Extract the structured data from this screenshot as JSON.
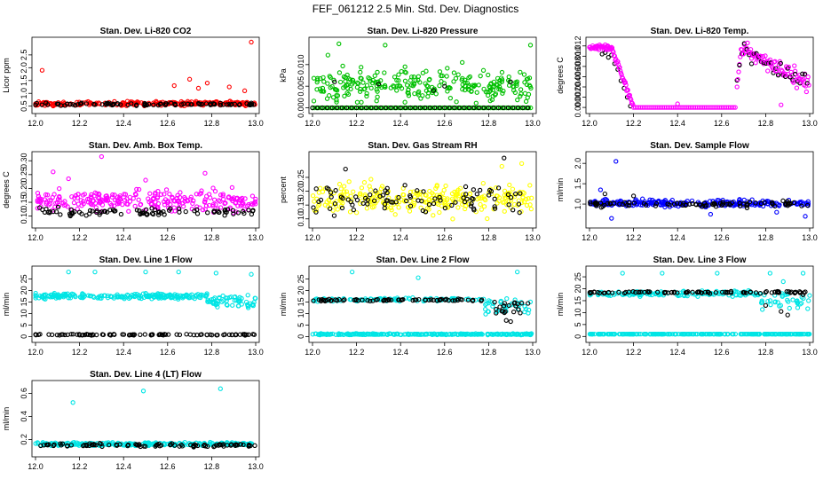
{
  "figure_title": "FEF_061212  2.5 Min. Std. Dev. Diagnostics",
  "chart_data": [
    {
      "type": "scatter",
      "title": "Stan. Dev. Li-820 CO2",
      "ylabel": "Licor ppm",
      "xlim": [
        12.0,
        13.0
      ],
      "xticks": [
        "12.0",
        "12.2",
        "12.4",
        "12.6",
        "12.8",
        "13.0"
      ],
      "ylim": [
        0.35,
        3.05
      ],
      "yticks": [
        "0.5",
        "1.0",
        "1.5",
        "2.0",
        "2.5"
      ],
      "series": [
        {
          "name": "all",
          "color": "#ff0000",
          "base": 0.6,
          "jitter": 0.08,
          "outliers": [
            [
              12.03,
              1.9
            ],
            [
              12.7,
              1.55
            ],
            [
              12.74,
              1.2
            ],
            [
              12.63,
              1.3
            ],
            [
              12.78,
              1.4
            ],
            [
              12.88,
              1.25
            ],
            [
              12.98,
              3.0
            ],
            [
              12.95,
              1.1
            ]
          ]
        },
        {
          "name": "selected",
          "color": "#000000",
          "base": 0.57,
          "jitter": 0.05,
          "outliers": []
        }
      ]
    },
    {
      "type": "scatter",
      "title": "Stan. Dev. Li-820 Pressure",
      "ylabel": "kPa",
      "xlim": [
        12.0,
        13.0
      ],
      "xticks": [
        "12.0",
        "12.2",
        "12.4",
        "12.6",
        "12.8",
        "13.0"
      ],
      "ylim": [
        -0.0005,
        0.0155
      ],
      "yticks": [
        "0.000",
        "0.005",
        "0.010"
      ],
      "series": [
        {
          "name": "all",
          "color": "#00c000",
          "base": 0.005,
          "jitter": 0.004,
          "outliers": [
            [
              12.07,
              0.0122
            ],
            [
              12.12,
              0.0148
            ],
            [
              12.33,
              0.0145
            ],
            [
              12.68,
              0.0105
            ],
            [
              12.99,
              0.0145
            ],
            [
              12.42,
              0.0095
            ]
          ]
        },
        {
          "name": "zero",
          "color": "#00c000",
          "base": 0.0,
          "jitter": 0.0,
          "outliers": []
        },
        {
          "name": "selected",
          "color": "#000000",
          "base": 0.0,
          "jitter": 0.0,
          "outliers": [
            [
              12.1,
              0.006
            ],
            [
              12.3,
              0.0055
            ],
            [
              12.6,
              0.005
            ],
            [
              12.9,
              0.006
            ],
            [
              12.55,
              0.004
            ]
          ]
        }
      ]
    },
    {
      "type": "scatter",
      "title": "Stan. Dev. Li-820 Temp.",
      "ylabel": "degrees C",
      "xlim": [
        12.0,
        13.0
      ],
      "xticks": [
        "12.0",
        "12.2",
        "12.4",
        "12.6",
        "12.8",
        "13.0"
      ],
      "ylim": [
        -0.0005,
        0.013
      ],
      "yticks": [
        "0.000",
        "0.002",
        "0.004",
        "0.006",
        "0.008",
        "0.010",
        "0.012"
      ],
      "series": [
        {
          "name": "all",
          "color": "#ff00ff",
          "base": 0.0,
          "jitter": 0.0,
          "outliers": []
        },
        {
          "name": "selected",
          "color": "#000000",
          "base": 0.0,
          "jitter": 0.0,
          "outliers": []
        }
      ]
    },
    {
      "type": "scatter",
      "title": "Stan. Dev. Amb. Box Temp.",
      "ylabel": "degrees C",
      "xlim": [
        12.0,
        13.0
      ],
      "xticks": [
        "12.0",
        "12.2",
        "12.4",
        "12.6",
        "12.8",
        "13.0"
      ],
      "ylim": [
        0.07,
        0.32
      ],
      "yticks": [
        "0.10",
        "0.15",
        "0.20",
        "0.25",
        "0.30"
      ],
      "series": [
        {
          "name": "all",
          "color": "#ff00ff",
          "base": 0.155,
          "jitter": 0.04,
          "outliers": [
            [
              12.08,
              0.26
            ],
            [
              12.3,
              0.315
            ],
            [
              12.77,
              0.255
            ],
            [
              12.5,
              0.23
            ],
            [
              12.15,
              0.235
            ]
          ]
        },
        {
          "name": "selected",
          "color": "#000000",
          "base": 0.115,
          "jitter": 0.015,
          "outliers": []
        }
      ]
    },
    {
      "type": "scatter",
      "title": "Stan. Dev. Gas Stream RH",
      "ylabel": "percent",
      "xlim": [
        12.0,
        13.0
      ],
      "xticks": [
        "12.0",
        "12.2",
        "12.4",
        "12.6",
        "12.8",
        "13.0"
      ],
      "ylim": [
        0.08,
        0.33
      ],
      "yticks": [
        "0.10",
        "0.15",
        "0.20",
        "0.25"
      ],
      "series": [
        {
          "name": "all",
          "color": "#ffff00",
          "base": 0.17,
          "jitter": 0.06,
          "outliers": [
            [
              12.95,
              0.3
            ],
            [
              12.86,
              0.29
            ]
          ]
        },
        {
          "name": "selected",
          "color": "#000000",
          "base": 0.17,
          "jitter": 0.05,
          "outliers": [
            [
              12.87,
              0.32
            ],
            [
              12.15,
              0.28
            ]
          ]
        }
      ]
    },
    {
      "type": "scatter",
      "title": "Stan. Dev. Sample Flow",
      "ylabel": "ml/min",
      "xlim": [
        12.0,
        13.0
      ],
      "xticks": [
        "12.0",
        "12.2",
        "12.4",
        "12.6",
        "12.8",
        "13.0"
      ],
      "ylim": [
        0.5,
        2.2
      ],
      "yticks": [
        "1.0",
        "1.5",
        "2.0"
      ],
      "series": [
        {
          "name": "all",
          "color": "#0000ff",
          "base": 1.02,
          "jitter": 0.09,
          "outliers": [
            [
              12.12,
              2.05
            ],
            [
              12.05,
              1.35
            ],
            [
              12.98,
              0.7
            ],
            [
              12.55,
              0.75
            ],
            [
              12.85,
              0.8
            ],
            [
              12.1,
              0.65
            ]
          ]
        },
        {
          "name": "selected",
          "color": "#000000",
          "base": 1.0,
          "jitter": 0.08,
          "outliers": [
            [
              12.07,
              1.25
            ],
            [
              12.2,
              1.2
            ]
          ]
        }
      ]
    },
    {
      "type": "scatter",
      "title": "Stan. Dev. Line 1 Flow",
      "ylabel": "ml/min",
      "xlim": [
        12.0,
        13.0
      ],
      "xticks": [
        "12.0",
        "12.2",
        "12.4",
        "12.6",
        "12.8",
        "13.0"
      ],
      "ylim": [
        -1,
        29
      ],
      "yticks": [
        "0",
        "5",
        "10",
        "15",
        "20",
        "25"
      ],
      "series": [
        {
          "name": "all",
          "color": "#00e5e5",
          "base": 17.5,
          "jitter": 1.2,
          "outliers": [
            [
              12.27,
              28
            ],
            [
              12.5,
              28
            ],
            [
              12.65,
              28
            ],
            [
              12.82,
              27.5
            ],
            [
              12.98,
              27
            ],
            [
              12.15,
              28
            ]
          ]
        },
        {
          "name": "selected",
          "color": "#000000",
          "base": 0.8,
          "jitter": 0.25,
          "outliers": []
        }
      ]
    },
    {
      "type": "scatter",
      "title": "Stan. Dev. Line 2 Flow",
      "ylabel": "ml/min",
      "xlim": [
        12.0,
        13.0
      ],
      "xticks": [
        "12.0",
        "12.2",
        "12.4",
        "12.6",
        "12.8",
        "13.0"
      ],
      "ylim": [
        -1,
        29
      ],
      "yticks": [
        "0",
        "5",
        "10",
        "15",
        "20",
        "25"
      ],
      "series": [
        {
          "name": "all",
          "color": "#00e5e5",
          "base": 1.0,
          "jitter": 0.3,
          "outliers": [
            [
              12.18,
              28
            ],
            [
              12.93,
              28
            ],
            [
              12.48,
              25.5
            ]
          ]
        },
        {
          "name": "selected",
          "color": "#000000",
          "base": 15.8,
          "jitter": 0.5,
          "outliers": [
            [
              12.88,
              7
            ],
            [
              12.9,
              6.5
            ],
            [
              12.86,
              11
            ]
          ]
        }
      ]
    },
    {
      "type": "scatter",
      "title": "Stan. Dev. Line 3 Flow",
      "ylabel": "ml/min",
      "xlim": [
        12.0,
        13.0
      ],
      "xticks": [
        "12.0",
        "12.2",
        "12.4",
        "12.6",
        "12.8",
        "13.0"
      ],
      "ylim": [
        -1,
        28
      ],
      "yticks": [
        "0",
        "5",
        "10",
        "15",
        "20",
        "25"
      ],
      "series": [
        {
          "name": "all",
          "color": "#00e5e5",
          "base": 1.0,
          "jitter": 0.3,
          "outliers": [
            [
              12.15,
              26.5
            ],
            [
              12.33,
              26.5
            ],
            [
              12.58,
              26.5
            ],
            [
              12.82,
              26.5
            ],
            [
              12.97,
              26.5
            ],
            [
              12.88,
              23
            ]
          ]
        },
        {
          "name": "selected",
          "color": "#000000",
          "base": 18.5,
          "jitter": 0.5,
          "outliers": [
            [
              12.9,
              9
            ],
            [
              12.87,
              10.5
            ],
            [
              12.8,
              13
            ],
            [
              12.97,
              17.5
            ]
          ]
        }
      ]
    },
    {
      "type": "scatter",
      "title": "Stan. Dev. Line 4 (LT) Flow",
      "ylabel": "ml/min",
      "xlim": [
        12.0,
        13.0
      ],
      "xticks": [
        "12.0",
        "12.2",
        "12.4",
        "12.6",
        "12.8",
        "13.0"
      ],
      "ylim": [
        0.08,
        0.68
      ],
      "yticks": [
        "0.2",
        "0.4",
        "0.6"
      ],
      "series": [
        {
          "name": "all",
          "color": "#00e5e5",
          "base": 0.16,
          "jitter": 0.015,
          "outliers": [
            [
              12.17,
              0.52
            ],
            [
              12.49,
              0.62
            ],
            [
              12.84,
              0.64
            ]
          ]
        },
        {
          "name": "selected",
          "color": "#000000",
          "base": 0.15,
          "jitter": 0.015,
          "outliers": []
        }
      ]
    }
  ]
}
